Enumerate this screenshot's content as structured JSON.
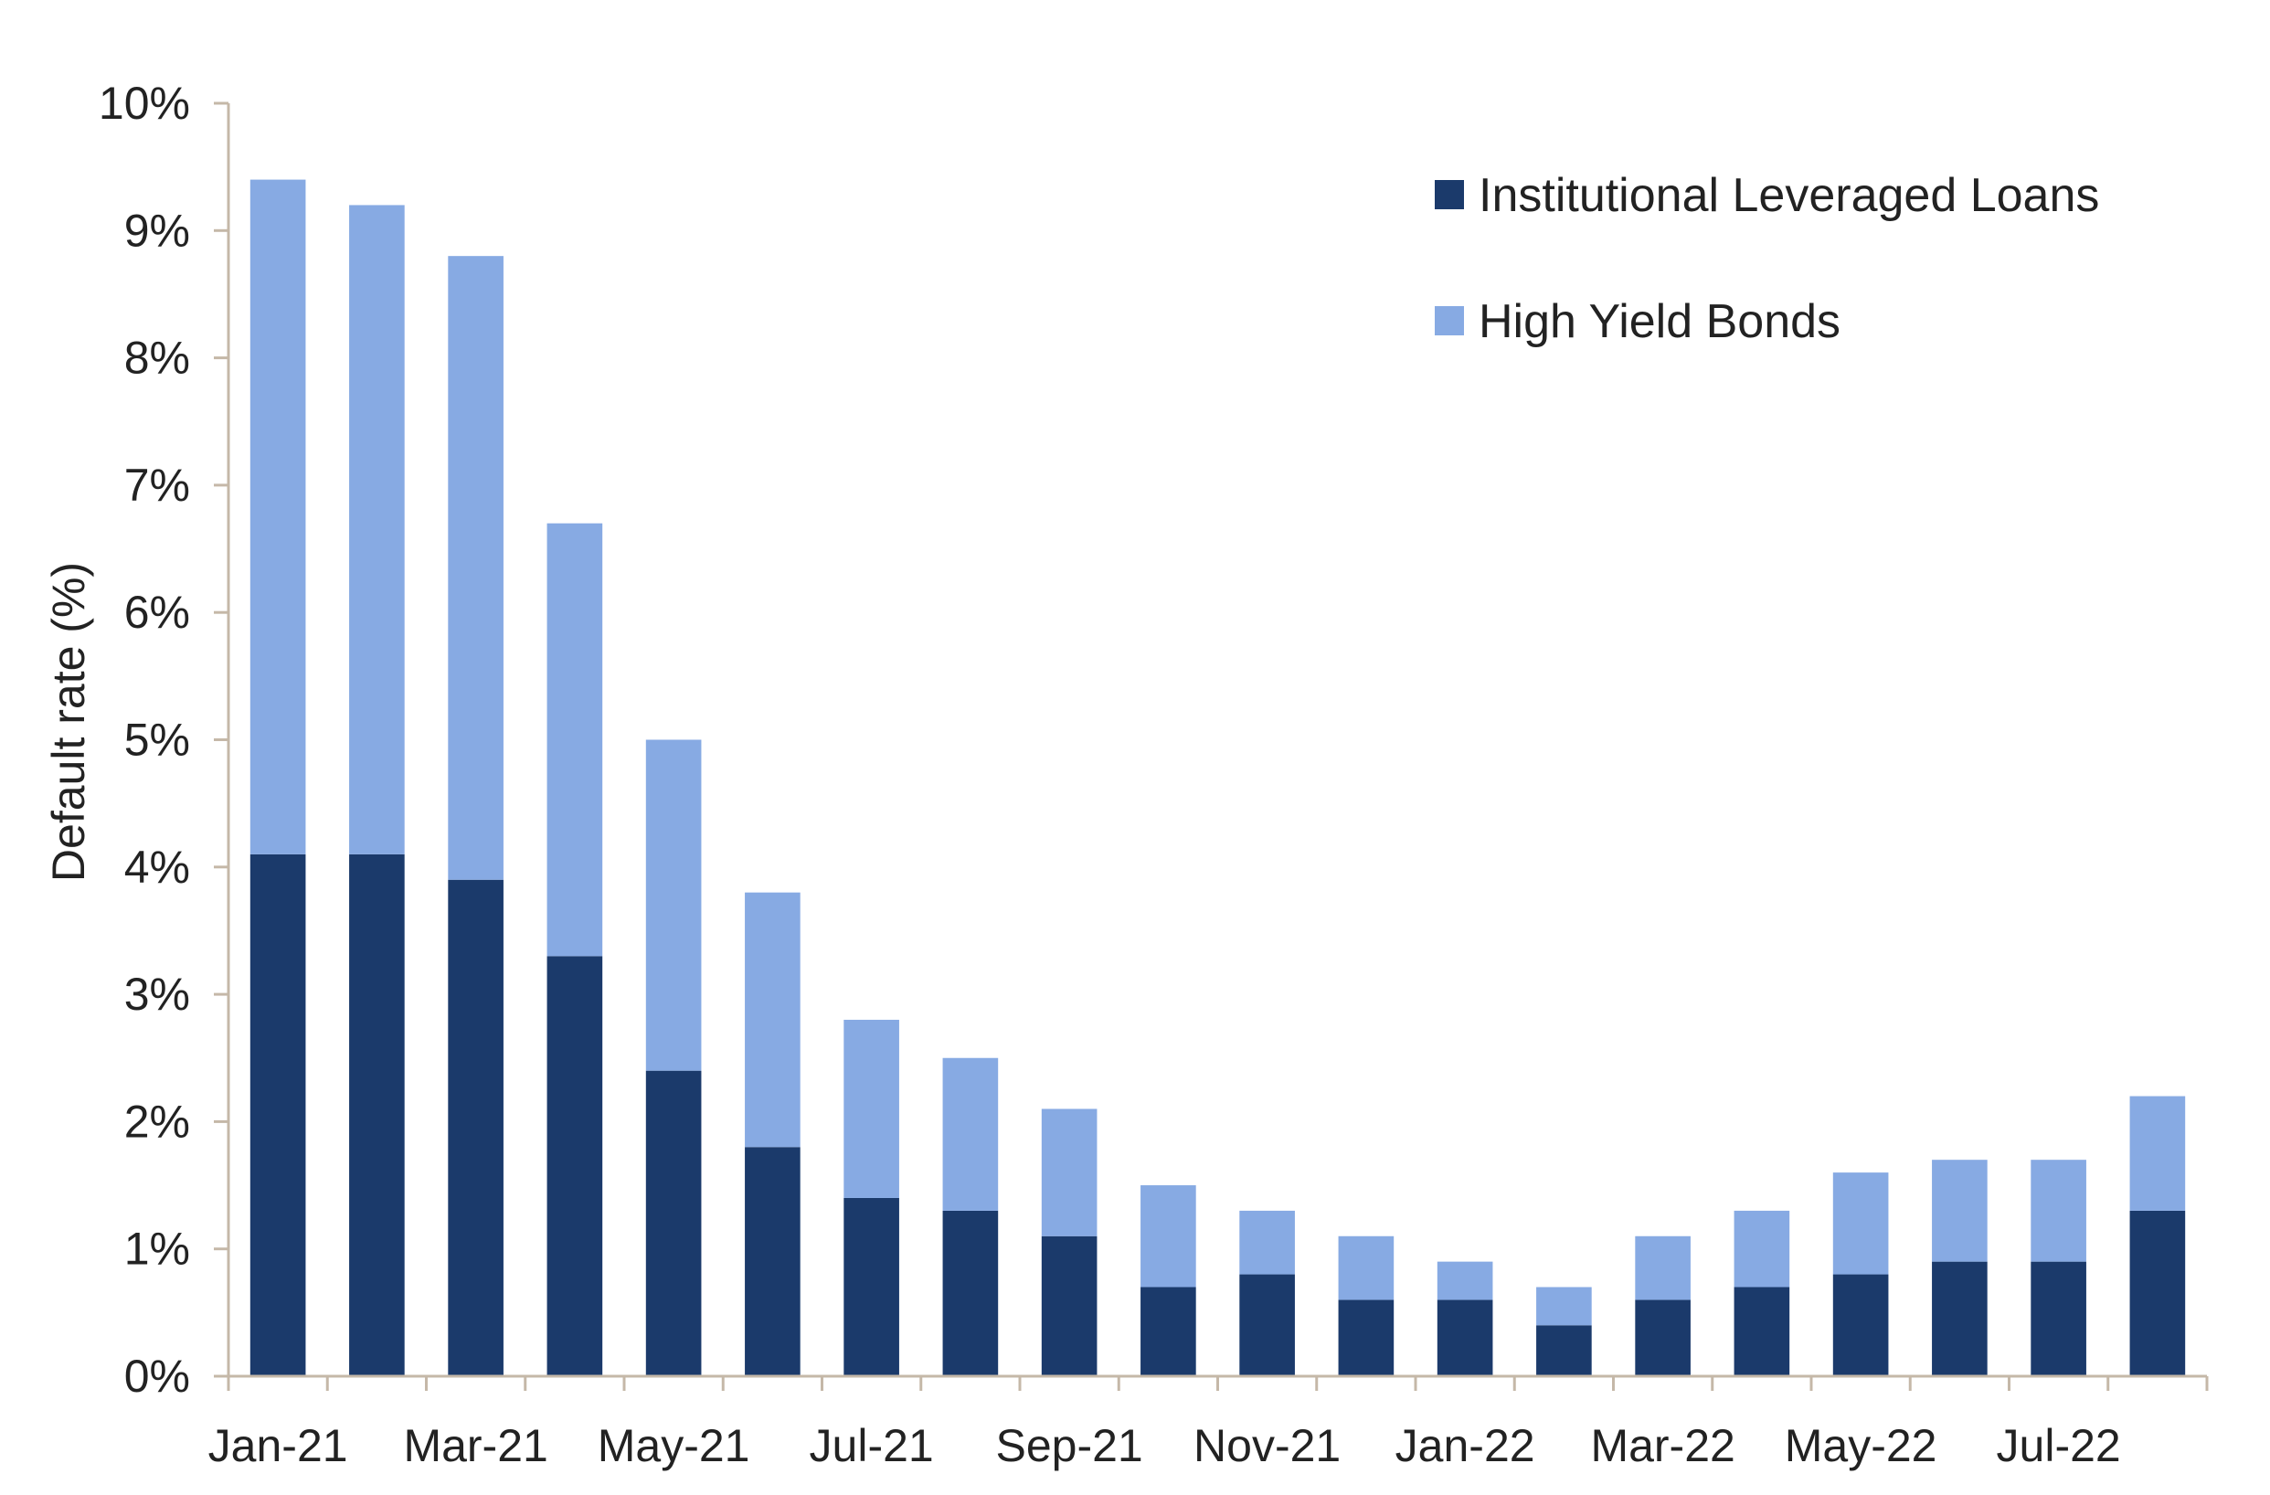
{
  "chart_data": {
    "type": "bar",
    "stacked": true,
    "categories": [
      "Jan-21",
      "Feb-21",
      "Mar-21",
      "Apr-21",
      "May-21",
      "Jun-21",
      "Jul-21",
      "Aug-21",
      "Sep-21",
      "Oct-21",
      "Nov-21",
      "Dec-21",
      "Jan-22",
      "Feb-22",
      "Mar-22",
      "Apr-22",
      "May-22",
      "Jun-22",
      "Jul-22",
      "Aug-22"
    ],
    "x_tick_labels": [
      "Jan-21",
      "",
      "Mar-21",
      "",
      "May-21",
      "",
      "Jul-21",
      "",
      "Sep-21",
      "",
      "Nov-21",
      "",
      "Jan-22",
      "",
      "Mar-22",
      "",
      "May-22",
      "",
      "Jul-22",
      ""
    ],
    "series": [
      {
        "name": "Institutional Leveraged Loans",
        "color": "#1b3a6b",
        "values": [
          4.1,
          4.1,
          3.9,
          3.3,
          2.4,
          1.8,
          1.4,
          1.3,
          1.1,
          0.7,
          0.8,
          0.6,
          0.6,
          0.4,
          0.6,
          0.7,
          0.8,
          0.9,
          0.9,
          1.3
        ]
      },
      {
        "name": "High Yield Bonds",
        "color": "#87aae3",
        "values": [
          5.3,
          5.1,
          4.9,
          3.4,
          2.6,
          2.0,
          1.4,
          1.2,
          1.0,
          0.8,
          0.5,
          0.5,
          0.3,
          0.3,
          0.5,
          0.6,
          0.8,
          0.8,
          0.8,
          0.9
        ]
      }
    ],
    "title": "",
    "xlabel": "",
    "ylabel": "Default rate (%)",
    "ylim": [
      0,
      10
    ],
    "y_ticks": [
      0,
      1,
      2,
      3,
      4,
      5,
      6,
      7,
      8,
      9,
      10
    ],
    "y_tick_labels": [
      "0%",
      "1%",
      "2%",
      "3%",
      "4%",
      "5%",
      "6%",
      "7%",
      "8%",
      "9%",
      "10%"
    ],
    "grid": false,
    "legend_position": "top-right",
    "axis_color": "#c5b8a8"
  }
}
